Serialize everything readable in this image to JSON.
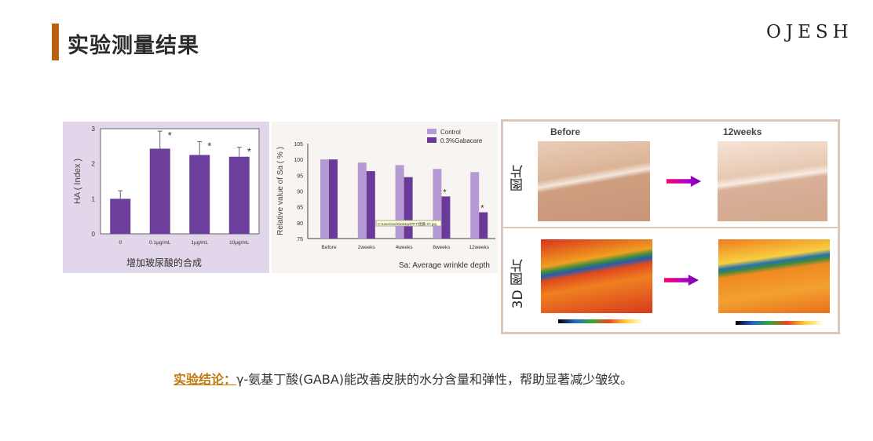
{
  "header": {
    "title": "实验测量结果",
    "logo": "OJESH",
    "accent": "#b8620f"
  },
  "chart_data": [
    {
      "type": "bar",
      "ylabel": "HA ( Index )",
      "xlabel": "增加玻尿酸的合成",
      "categories": [
        "0",
        "0.1μg/mL",
        "1μg/mL",
        "10μg/mL"
      ],
      "values": [
        1.0,
        2.43,
        2.25,
        2.2
      ],
      "error": [
        0.23,
        0.5,
        0.38,
        0.27
      ],
      "significant": [
        false,
        true,
        true,
        true
      ],
      "ylim": [
        0,
        3
      ],
      "yticks": [
        "0",
        "1",
        "2",
        "3"
      ],
      "color": "#6c3f9c",
      "significance_mark": "*"
    },
    {
      "type": "bar",
      "ylabel": "Relative value of Sa ( % )",
      "xlabel": "Sa:  Average wrinkle depth",
      "categories": [
        "Before",
        "2weeks",
        "4weeks",
        "8weeks",
        "12weeks"
      ],
      "series": [
        {
          "name": "Control",
          "values": [
            100,
            99,
            98.2,
            97,
            96
          ],
          "color": "#b59ad4"
        },
        {
          "name": "0.3%Gabacare",
          "values": [
            100,
            96.3,
            94.4,
            88.3,
            83.3
          ],
          "color": "#6a3a9a",
          "significant": [
            false,
            false,
            false,
            true,
            true
          ]
        }
      ],
      "ylim": [
        75,
        105
      ],
      "yticks": [
        "75",
        "80",
        "85",
        "90",
        "95",
        "100",
        "105"
      ],
      "legend": "top-right",
      "significance_mark": "*",
      "tooltip": "C:\\Users\\xx\\Desktop\\PPT\\图集-07.jpg"
    }
  ],
  "comparison": {
    "before": "Before",
    "after": "12weeks",
    "row1": "图片",
    "row2": "3D 图片"
  },
  "conclusion": {
    "label": "实验结论：",
    "text": "γ-氨基丁酸(GABA)能改善皮肤的水分含量和弹性，帮助显著减少皱纹。"
  }
}
